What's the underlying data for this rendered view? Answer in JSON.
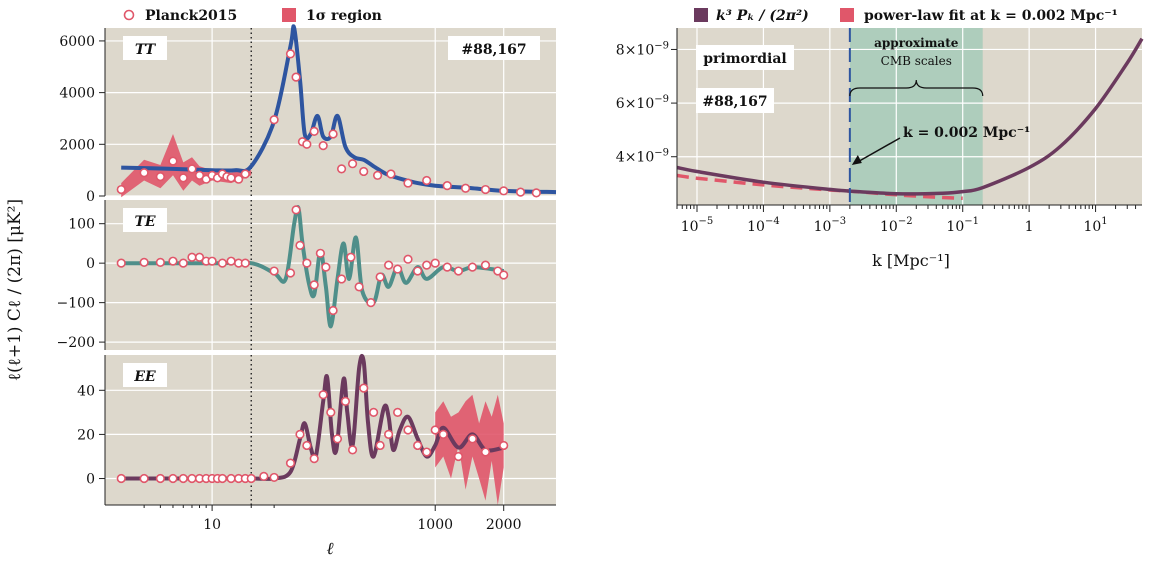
{
  "chart_data": [
    {
      "type": "line",
      "panel": "TT",
      "xscale": "log",
      "xticks": [
        "10",
        "1000",
        "2000"
      ],
      "ylim": [
        0,
        6500
      ],
      "yticks": [
        "0",
        "2000",
        "4000",
        "6000"
      ],
      "label": "TT",
      "annotation": "#88,167",
      "legend": {
        "points": "Planck2015",
        "band": "1σ region",
        "placement": "top"
      },
      "points": [
        [
          2,
          250
        ],
        [
          3,
          900
        ],
        [
          4,
          750
        ],
        [
          5,
          1350
        ],
        [
          6,
          700
        ],
        [
          7,
          1050
        ],
        [
          8,
          800
        ],
        [
          9,
          650
        ],
        [
          10,
          800
        ],
        [
          11,
          700
        ],
        [
          12,
          850
        ],
        [
          13,
          750
        ],
        [
          14,
          700
        ],
        [
          16,
          650
        ],
        [
          18,
          850
        ],
        [
          30,
          2950
        ],
        [
          40,
          5500
        ],
        [
          48,
          4600
        ],
        [
          60,
          2100
        ],
        [
          70,
          2000
        ],
        [
          90,
          2500
        ],
        [
          120,
          1950
        ],
        [
          160,
          2400
        ],
        [
          200,
          1050
        ],
        [
          260,
          1250
        ],
        [
          330,
          950
        ],
        [
          430,
          800
        ],
        [
          540,
          850
        ],
        [
          700,
          500
        ],
        [
          900,
          600
        ],
        [
          1150,
          400
        ],
        [
          1400,
          300
        ],
        [
          1700,
          250
        ],
        [
          2000,
          200
        ],
        [
          2300,
          150
        ],
        [
          2600,
          120
        ]
      ],
      "curve": [
        [
          2,
          1100
        ],
        [
          5,
          1050
        ],
        [
          10,
          1000
        ],
        [
          15,
          1000
        ],
        [
          20,
          1150
        ],
        [
          30,
          2900
        ],
        [
          40,
          5800
        ],
        [
          45,
          6500
        ],
        [
          55,
          4500
        ],
        [
          65,
          2400
        ],
        [
          80,
          2400
        ],
        [
          100,
          3100
        ],
        [
          120,
          2300
        ],
        [
          150,
          2300
        ],
        [
          180,
          3100
        ],
        [
          220,
          1900
        ],
        [
          270,
          1500
        ],
        [
          330,
          1400
        ],
        [
          400,
          1150
        ],
        [
          500,
          850
        ],
        [
          600,
          700
        ],
        [
          800,
          500
        ],
        [
          1000,
          400
        ],
        [
          1500,
          300
        ],
        [
          2000,
          200
        ],
        [
          3000,
          150
        ]
      ],
      "band_low": [
        [
          2,
          -50
        ],
        [
          3,
          600
        ],
        [
          4,
          300
        ],
        [
          5,
          800
        ],
        [
          6,
          200
        ],
        [
          7,
          600
        ],
        [
          8,
          400
        ],
        [
          10,
          600
        ],
        [
          14,
          500
        ],
        [
          18,
          700
        ],
        [
          20,
          800
        ]
      ],
      "band_high": [
        [
          2,
          500
        ],
        [
          3,
          1400
        ],
        [
          4,
          1200
        ],
        [
          5,
          2400
        ],
        [
          6,
          1300
        ],
        [
          7,
          1500
        ],
        [
          8,
          1150
        ],
        [
          10,
          1000
        ],
        [
          14,
          900
        ],
        [
          18,
          1000
        ],
        [
          20,
          1000
        ]
      ]
    },
    {
      "type": "line",
      "panel": "TE",
      "xscale": "log",
      "ylim": [
        -220,
        160
      ],
      "yticks": [
        "−200",
        "−100",
        "0",
        "100"
      ],
      "label": "TE",
      "points": [
        [
          2,
          0
        ],
        [
          3,
          2
        ],
        [
          4,
          2
        ],
        [
          5,
          5
        ],
        [
          6,
          0
        ],
        [
          7,
          15
        ],
        [
          8,
          15
        ],
        [
          9,
          5
        ],
        [
          10,
          5
        ],
        [
          12,
          0
        ],
        [
          14,
          5
        ],
        [
          16,
          0
        ],
        [
          18,
          0
        ],
        [
          30,
          -20
        ],
        [
          40,
          -25
        ],
        [
          48,
          135
        ],
        [
          55,
          45
        ],
        [
          70,
          0
        ],
        [
          90,
          -55
        ],
        [
          110,
          25
        ],
        [
          130,
          -10
        ],
        [
          160,
          -120
        ],
        [
          200,
          -40
        ],
        [
          250,
          15
        ],
        [
          300,
          -60
        ],
        [
          380,
          -100
        ],
        [
          450,
          -35
        ],
        [
          520,
          -5
        ],
        [
          600,
          -15
        ],
        [
          700,
          10
        ],
        [
          800,
          -20
        ],
        [
          900,
          -5
        ],
        [
          1000,
          0
        ],
        [
          1150,
          -10
        ],
        [
          1300,
          -20
        ],
        [
          1500,
          -10
        ],
        [
          1700,
          -5
        ],
        [
          1900,
          -20
        ],
        [
          2000,
          -30
        ]
      ],
      "curve": [
        [
          2,
          0
        ],
        [
          10,
          0
        ],
        [
          20,
          0
        ],
        [
          30,
          -25
        ],
        [
          35,
          -40
        ],
        [
          45,
          100
        ],
        [
          52,
          140
        ],
        [
          60,
          50
        ],
        [
          75,
          -50
        ],
        [
          90,
          -80
        ],
        [
          110,
          30
        ],
        [
          130,
          -60
        ],
        [
          150,
          -160
        ],
        [
          180,
          -40
        ],
        [
          210,
          50
        ],
        [
          240,
          -40
        ],
        [
          280,
          65
        ],
        [
          320,
          -70
        ],
        [
          400,
          -100
        ],
        [
          460,
          -30
        ],
        [
          520,
          -60
        ],
        [
          600,
          -10
        ],
        [
          680,
          -50
        ],
        [
          800,
          -10
        ],
        [
          900,
          -40
        ],
        [
          1100,
          -10
        ],
        [
          1300,
          -20
        ],
        [
          1500,
          -10
        ],
        [
          1800,
          -15
        ],
        [
          2000,
          -20
        ]
      ],
      "band_low": [],
      "band_high": []
    },
    {
      "type": "line",
      "panel": "EE",
      "xscale": "log",
      "ylim": [
        -12,
        56
      ],
      "yticks": [
        "0",
        "20",
        "40"
      ],
      "label": "EE",
      "points": [
        [
          2,
          0
        ],
        [
          3,
          0
        ],
        [
          4,
          0
        ],
        [
          5,
          0
        ],
        [
          6,
          0
        ],
        [
          7,
          0
        ],
        [
          8,
          0
        ],
        [
          9,
          0
        ],
        [
          10,
          0
        ],
        [
          11,
          0
        ],
        [
          12,
          0
        ],
        [
          14,
          0
        ],
        [
          16,
          0
        ],
        [
          18,
          0
        ],
        [
          20,
          0
        ],
        [
          25,
          1
        ],
        [
          30,
          0.5
        ],
        [
          40,
          7
        ],
        [
          55,
          20
        ],
        [
          70,
          15
        ],
        [
          90,
          9
        ],
        [
          120,
          38
        ],
        [
          150,
          30
        ],
        [
          180,
          18
        ],
        [
          220,
          35
        ],
        [
          260,
          13
        ],
        [
          330,
          41
        ],
        [
          400,
          30
        ],
        [
          450,
          15
        ],
        [
          520,
          20
        ],
        [
          600,
          30
        ],
        [
          700,
          22
        ],
        [
          800,
          15
        ],
        [
          900,
          12
        ],
        [
          1000,
          22
        ],
        [
          1100,
          20
        ],
        [
          1300,
          10
        ],
        [
          1500,
          18
        ],
        [
          1700,
          12
        ],
        [
          2000,
          15
        ]
      ],
      "curve": [
        [
          2,
          0
        ],
        [
          10,
          0
        ],
        [
          20,
          0
        ],
        [
          30,
          0
        ],
        [
          40,
          3
        ],
        [
          55,
          18
        ],
        [
          65,
          25
        ],
        [
          80,
          14
        ],
        [
          95,
          10
        ],
        [
          120,
          35
        ],
        [
          135,
          46
        ],
        [
          155,
          20
        ],
        [
          175,
          13
        ],
        [
          210,
          45
        ],
        [
          230,
          30
        ],
        [
          260,
          15
        ],
        [
          300,
          50
        ],
        [
          330,
          53
        ],
        [
          360,
          25
        ],
        [
          400,
          10
        ],
        [
          480,
          32
        ],
        [
          520,
          28
        ],
        [
          560,
          13
        ],
        [
          620,
          22
        ],
        [
          700,
          28
        ],
        [
          800,
          18
        ],
        [
          900,
          10
        ],
        [
          1000,
          15
        ],
        [
          1100,
          23
        ],
        [
          1300,
          14
        ],
        [
          1500,
          20
        ],
        [
          1700,
          13
        ],
        [
          2000,
          14
        ]
      ],
      "band_low": [
        [
          1000,
          5
        ],
        [
          1100,
          10
        ],
        [
          1200,
          0
        ],
        [
          1300,
          15
        ],
        [
          1400,
          -5
        ],
        [
          1500,
          10
        ],
        [
          1600,
          0
        ],
        [
          1700,
          -10
        ],
        [
          1800,
          8
        ],
        [
          1900,
          -12
        ],
        [
          2000,
          5
        ]
      ],
      "band_high": [
        [
          1000,
          30
        ],
        [
          1100,
          35
        ],
        [
          1200,
          28
        ],
        [
          1300,
          30
        ],
        [
          1400,
          35
        ],
        [
          1500,
          38
        ],
        [
          1600,
          25
        ],
        [
          1700,
          35
        ],
        [
          1800,
          28
        ],
        [
          1900,
          38
        ],
        [
          2000,
          25
        ]
      ]
    },
    {
      "type": "line",
      "panel": "power-spectrum",
      "xscale": "log",
      "xlabel": "k [Mpc⁻¹]",
      "xlim": [
        5e-06,
        50
      ],
      "ylim": [
        2.2e-09,
        8.8e-09
      ],
      "yticks": [
        4e-09,
        6e-09,
        8e-09
      ],
      "legend": {
        "series_a": "k³ Pₖ / (2π²)",
        "series_b": "power-law fit at k = 0.002 Mpc⁻¹",
        "placement": "top"
      },
      "annotations": {
        "label": "primordial",
        "id": "#88,167",
        "shaded": "approximate CMB scales",
        "arrow": "k = 0.002 Mpc⁻¹"
      },
      "shaded_range": [
        0.002,
        0.2
      ],
      "marker_k": 0.002,
      "series": [
        {
          "name": "k³ Pₖ / (2π²)",
          "x": [
            5e-06,
            1e-05,
            0.0001,
            0.001,
            0.002,
            0.01,
            0.05,
            0.1,
            0.2,
            1,
            3,
            10,
            30,
            50
          ],
          "y": [
            3.6e-09,
            3.45e-09,
            3.05e-09,
            2.78e-09,
            2.72e-09,
            2.62e-09,
            2.64e-09,
            2.7e-09,
            2.85e-09,
            3.6e-09,
            4.4e-09,
            5.8e-09,
            7.5e-09,
            8.4e-09
          ]
        },
        {
          "name": "power-law fit at k = 0.002 Mpc⁻¹",
          "x": [
            5e-06,
            1e-05,
            0.0001,
            0.001,
            0.002,
            0.01,
            0.05,
            0.1
          ],
          "y": [
            3.3e-09,
            3.2e-09,
            2.95e-09,
            2.76e-09,
            2.72e-09,
            2.58e-09,
            2.48e-09,
            2.45e-09
          ]
        }
      ]
    }
  ],
  "shared": {
    "xlabel_left": "ℓ",
    "ylabel_left": "ℓ(ℓ+1)  Cℓ / (2π)   [μK²]",
    "vline_l": 20
  }
}
